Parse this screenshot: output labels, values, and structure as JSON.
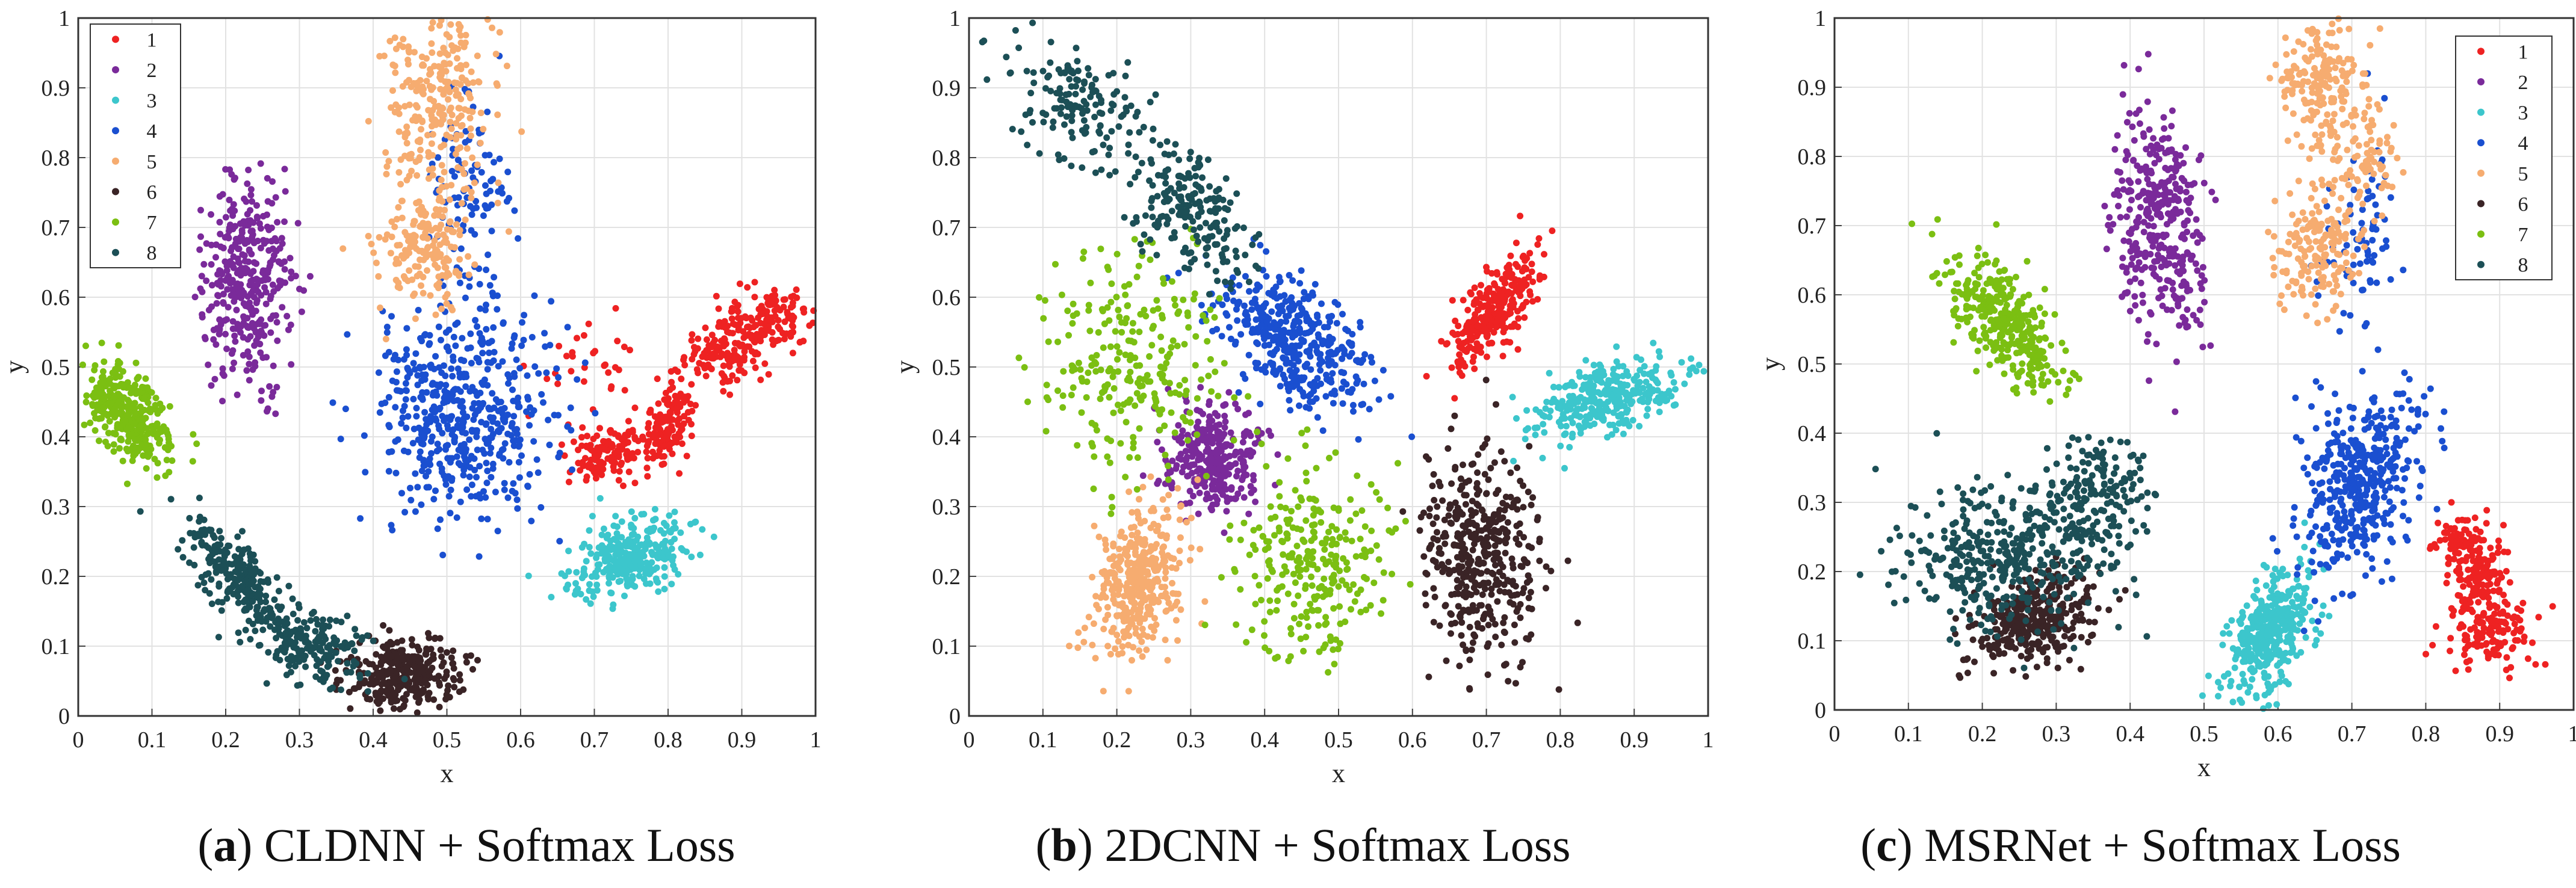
{
  "figure": {
    "captions": [
      {
        "letter": "a",
        "text": "CLDNN + Softmax Loss"
      },
      {
        "letter": "b",
        "text": "2DCNN + Softmax Loss"
      },
      {
        "letter": "c",
        "text": "MSRNet + Softmax Loss"
      }
    ]
  },
  "colors": {
    "1": "#ee2222",
    "2": "#7a2a9a",
    "3": "#3cc6cc",
    "4": "#1a4fd0",
    "5": "#f6ac70",
    "6": "#3a2426",
    "7": "#7bbf12",
    "8": "#1c4f56"
  },
  "chart_data": [
    {
      "type": "scatter",
      "title": "CLDNN + Softmax Loss",
      "xlabel": "x",
      "ylabel": "y",
      "xlim": [
        0,
        1
      ],
      "ylim": [
        0,
        1
      ],
      "xticks": [
        "0",
        "0.1",
        "0.2",
        "0.3",
        "0.4",
        "0.5",
        "0.6",
        "0.7",
        "0.8",
        "0.9",
        "1"
      ],
      "yticks": [
        "0",
        "0.1",
        "0.2",
        "0.3",
        "0.4",
        "0.5",
        "0.6",
        "0.7",
        "0.8",
        "0.9",
        "1"
      ],
      "grid": true,
      "legend": {
        "position": "top-left",
        "entries": [
          "1",
          "2",
          "3",
          "4",
          "5",
          "6",
          "7",
          "8"
        ]
      },
      "series": [
        {
          "name": "1",
          "clusters": [
            [
              0.72,
              0.38,
              0.03,
              0.02,
              0.2,
              130
            ],
            [
              0.8,
              0.42,
              0.02,
              0.03,
              0.5,
              130
            ],
            [
              0.88,
              0.53,
              0.03,
              0.03,
              0.3,
              160
            ],
            [
              0.95,
              0.57,
              0.02,
              0.02,
              0,
              90
            ],
            [
              0.7,
              0.5,
              0.04,
              0.04,
              0,
              30
            ]
          ]
        },
        {
          "name": "2",
          "clusters": [
            [
              0.23,
              0.62,
              0.03,
              0.07,
              0,
              360
            ]
          ]
        },
        {
          "name": "3",
          "clusters": [
            [
              0.75,
              0.23,
              0.04,
              0.03,
              0.3,
              300
            ]
          ]
        },
        {
          "name": "4",
          "clusters": [
            [
              0.52,
              0.43,
              0.06,
              0.07,
              0,
              520
            ],
            [
              0.53,
              0.75,
              0.03,
              0.08,
              0,
              110
            ]
          ]
        },
        {
          "name": "5",
          "clusters": [
            [
              0.49,
              0.87,
              0.04,
              0.08,
              0.1,
              280
            ],
            [
              0.47,
              0.67,
              0.03,
              0.04,
              0,
              160
            ]
          ]
        },
        {
          "name": "6",
          "clusters": [
            [
              0.44,
              0.06,
              0.04,
              0.025,
              0,
              330
            ]
          ]
        },
        {
          "name": "7",
          "clusters": [
            [
              0.07,
              0.43,
              0.03,
              0.04,
              -0.5,
              330
            ]
          ]
        },
        {
          "name": "8",
          "clusters": [
            [
              0.22,
              0.19,
              0.04,
              0.05,
              -0.8,
              260
            ],
            [
              0.32,
              0.1,
              0.04,
              0.03,
              -0.4,
              160
            ]
          ]
        }
      ]
    },
    {
      "type": "scatter",
      "title": "2DCNN + Softmax Loss",
      "xlabel": "x",
      "ylabel": "y",
      "xlim": [
        0,
        1
      ],
      "ylim": [
        0,
        1
      ],
      "xticks": [
        "0",
        "0.1",
        "0.2",
        "0.3",
        "0.4",
        "0.5",
        "0.6",
        "0.7",
        "0.8",
        "0.9",
        "1"
      ],
      "yticks": [
        "0",
        "0.1",
        "0.2",
        "0.3",
        "0.4",
        "0.5",
        "0.6",
        "0.7",
        "0.8",
        "0.9",
        "1"
      ],
      "grid": true,
      "legend": null,
      "series": [
        {
          "name": "1",
          "clusters": [
            [
              0.71,
              0.58,
              0.03,
              0.04,
              0.7,
              300
            ]
          ]
        },
        {
          "name": "2",
          "clusters": [
            [
              0.33,
              0.37,
              0.03,
              0.035,
              0,
              330
            ]
          ]
        },
        {
          "name": "3",
          "clusters": [
            [
              0.87,
              0.46,
              0.05,
              0.03,
              0.5,
              320
            ]
          ]
        },
        {
          "name": "4",
          "clusters": [
            [
              0.44,
              0.54,
              0.05,
              0.05,
              -0.5,
              420
            ]
          ]
        },
        {
          "name": "5",
          "clusters": [
            [
              0.23,
              0.19,
              0.03,
              0.06,
              0.3,
              380
            ]
          ]
        },
        {
          "name": "6",
          "clusters": [
            [
              0.69,
              0.23,
              0.04,
              0.07,
              0,
              430
            ]
          ]
        },
        {
          "name": "7",
          "clusters": [
            [
              0.22,
              0.5,
              0.06,
              0.08,
              0,
              260
            ],
            [
              0.46,
              0.23,
              0.05,
              0.07,
              0,
              270
            ]
          ]
        },
        {
          "name": "8",
          "clusters": [
            [
              0.15,
              0.88,
              0.05,
              0.05,
              -0.3,
              160
            ],
            [
              0.3,
              0.72,
              0.04,
              0.05,
              -0.5,
              200
            ]
          ]
        }
      ]
    },
    {
      "type": "scatter",
      "title": "MSRNet + Softmax Loss",
      "xlabel": "x",
      "ylabel": "y",
      "xlim": [
        0,
        1
      ],
      "ylim": [
        0,
        1
      ],
      "xticks": [
        "0",
        "0.1",
        "0.2",
        "0.3",
        "0.4",
        "0.5",
        "0.6",
        "0.7",
        "0.8",
        "0.9",
        "1"
      ],
      "yticks": [
        "0",
        "0.1",
        "0.2",
        "0.3",
        "0.4",
        "0.5",
        "0.6",
        "0.7",
        "0.8",
        "0.9",
        "1"
      ],
      "grid": true,
      "legend": {
        "position": "top-right",
        "entries": [
          "1",
          "2",
          "3",
          "4",
          "5",
          "6",
          "7",
          "8"
        ]
      },
      "series": [
        {
          "name": "1",
          "clusters": [
            [
              0.87,
              0.2,
              0.02,
              0.03,
              0,
              120
            ],
            [
              0.89,
              0.12,
              0.03,
              0.03,
              0,
              150
            ],
            [
              0.84,
              0.25,
              0.02,
              0.015,
              0,
              60
            ]
          ]
        },
        {
          "name": "2",
          "clusters": [
            [
              0.44,
              0.7,
              0.03,
              0.08,
              -0.3,
              360
            ]
          ]
        },
        {
          "name": "3",
          "clusters": [
            [
              0.59,
              0.11,
              0.03,
              0.05,
              0.5,
              380
            ]
          ]
        },
        {
          "name": "4",
          "clusters": [
            [
              0.71,
              0.33,
              0.04,
              0.07,
              0.3,
              420
            ],
            [
              0.71,
              0.68,
              0.03,
              0.07,
              0,
              80
            ]
          ]
        },
        {
          "name": "5",
          "clusters": [
            [
              0.66,
              0.9,
              0.03,
              0.05,
              0,
              200
            ],
            [
              0.65,
              0.67,
              0.03,
              0.04,
              0,
              170
            ],
            [
              0.72,
              0.8,
              0.03,
              0.04,
              0,
              80
            ]
          ]
        },
        {
          "name": "6",
          "clusters": [
            [
              0.27,
              0.13,
              0.04,
              0.035,
              0.3,
              330
            ]
          ]
        },
        {
          "name": "7",
          "clusters": [
            [
              0.23,
              0.56,
              0.04,
              0.05,
              -0.6,
              340
            ]
          ]
        },
        {
          "name": "8",
          "clusters": [
            [
              0.22,
              0.22,
              0.07,
              0.05,
              0,
              360
            ],
            [
              0.35,
              0.3,
              0.04,
              0.05,
              0,
              200
            ]
          ]
        }
      ]
    }
  ]
}
